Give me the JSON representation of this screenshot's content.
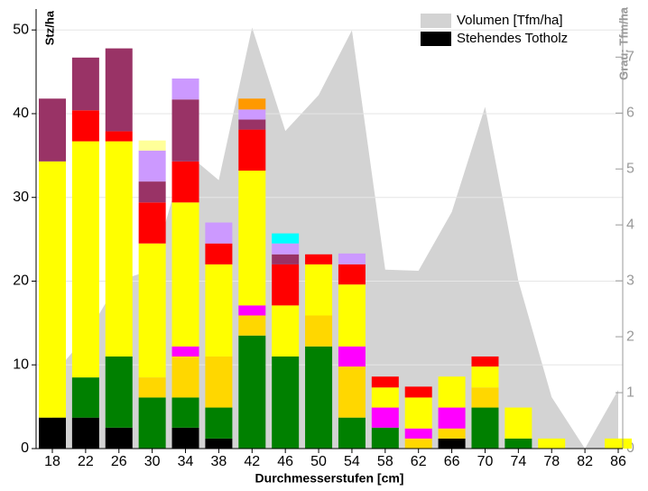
{
  "chart_data": {
    "type": "bar",
    "stacked": true,
    "xlabel": "Durchmesserstufen [cm]",
    "ylabel": "Stz/ha",
    "y2label": "Grau: Tfm/ha",
    "categories": [
      "18",
      "22",
      "26",
      "30",
      "34",
      "38",
      "42",
      "46",
      "50",
      "54",
      "58",
      "62",
      "66",
      "70",
      "74",
      "78",
      "82",
      "86"
    ],
    "ylim": [
      0,
      52.5
    ],
    "yticks": [
      0,
      10,
      20,
      30,
      40,
      50
    ],
    "y2lim": [
      0,
      7.86
    ],
    "y2ticks": [
      0,
      1,
      2,
      3,
      4,
      5,
      6,
      7
    ],
    "grid": true,
    "legend": "upper right",
    "series": [
      {
        "name": "Volumen [Tfm/ha]",
        "type": "area",
        "axis": "y2",
        "color": "#d3d3d3",
        "values": [
          1.3,
          2.0,
          3.0,
          3.2,
          5.3,
          4.8,
          7.53,
          5.68,
          6.32,
          7.48,
          3.2,
          3.18,
          4.23,
          6.11,
          3.0,
          0.92,
          0,
          1.05
        ]
      },
      {
        "name": "Stehendes Totholz",
        "color": "#000000",
        "values": [
          3.7,
          3.7,
          2.5,
          0,
          2.5,
          1.2,
          0,
          0,
          0,
          0,
          0,
          0,
          1.2,
          0,
          0,
          0,
          0,
          0
        ]
      },
      {
        "color": "#008000",
        "values": [
          0,
          4.8,
          8.5,
          6.1,
          3.6,
          3.7,
          13.5,
          11,
          12.2,
          3.7,
          2.5,
          0,
          0,
          4.9,
          1.2,
          0,
          0,
          0
        ]
      },
      {
        "color": "#ffd700",
        "values": [
          0,
          0,
          0,
          2.4,
          4.9,
          6.1,
          2.4,
          0,
          3.7,
          6.1,
          0,
          1.2,
          1.2,
          2.4,
          0,
          0,
          0,
          0
        ]
      },
      {
        "color": "#ff00ff",
        "values": [
          0,
          0,
          0,
          0,
          1.2,
          0,
          1.2,
          0,
          0,
          2.4,
          2.4,
          1.2,
          2.5,
          0,
          0,
          0,
          0,
          0
        ]
      },
      {
        "color": "#ffff00",
        "values": [
          30.6,
          28.2,
          25.7,
          16,
          17.2,
          11,
          16.1,
          6.1,
          6.1,
          7.4,
          2.4,
          3.7,
          3.7,
          2.5,
          3.7,
          1.2,
          0,
          1.2
        ]
      },
      {
        "color": "#ff0000",
        "values": [
          0,
          3.7,
          1.2,
          4.9,
          4.9,
          2.5,
          4.9,
          4.9,
          1.2,
          2.4,
          1.3,
          1.3,
          0,
          1.2,
          0,
          0,
          0,
          0
        ]
      },
      {
        "color": "#993366",
        "values": [
          7.5,
          6.3,
          9.9,
          2.5,
          7.4,
          0,
          1.2,
          1.2,
          0,
          0,
          0,
          0,
          0,
          0,
          0,
          0,
          0,
          0
        ]
      },
      {
        "color": "#cc99ff",
        "values": [
          0,
          0,
          0,
          3.7,
          2.5,
          2.5,
          1.2,
          1.3,
          0,
          1.3,
          0,
          0,
          0,
          0,
          0,
          0,
          0,
          0
        ]
      },
      {
        "color": "#ffff99",
        "values": [
          0,
          0,
          0,
          1.2,
          0,
          0,
          0,
          0,
          0,
          0,
          0,
          0,
          0,
          0,
          0,
          0,
          0,
          0
        ]
      },
      {
        "color": "#ff9900",
        "values": [
          0,
          0,
          0,
          0,
          0,
          0,
          1.3,
          0,
          0,
          0,
          0,
          0,
          0,
          0,
          0,
          0,
          0,
          0
        ]
      },
      {
        "color": "#00ffff",
        "values": [
          0,
          0,
          0,
          0,
          0,
          0,
          0,
          1.2,
          0,
          0,
          0,
          0,
          0,
          0,
          0,
          0,
          0,
          0
        ]
      }
    ]
  }
}
